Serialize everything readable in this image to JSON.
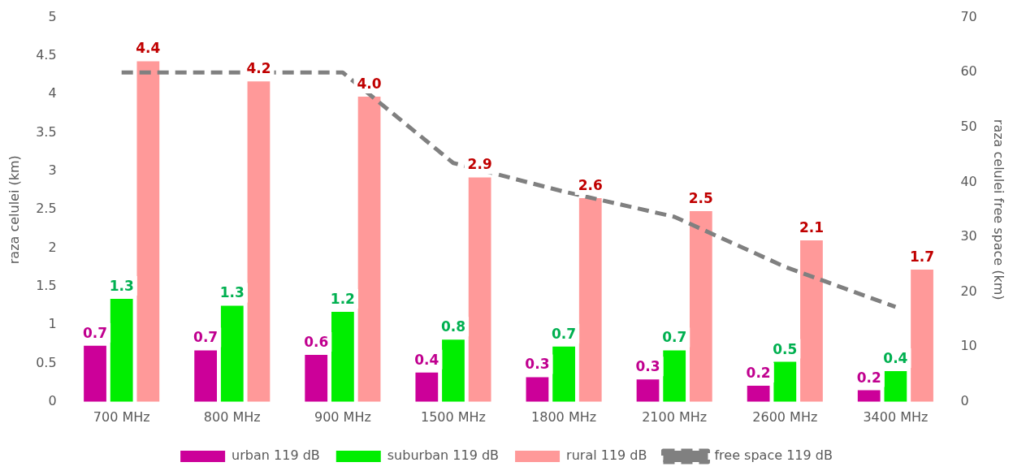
{
  "chart_data": {
    "type": "bar",
    "ylabel": "raza celulei (km)",
    "y2label": "raza celulei free space (km)",
    "categories": [
      "700 MHz",
      "800 MHz",
      "900 MHz",
      "1500 MHz",
      "1800 MHz",
      "2100 MHz",
      "2600 MHz",
      "3400 MHz"
    ],
    "series": [
      {
        "name": "urban 119 dB",
        "color": "#cc0099",
        "values": [
          0.73,
          0.67,
          0.61,
          0.38,
          0.32,
          0.29,
          0.21,
          0.15
        ],
        "value_labels": [
          "0.7",
          "0.7",
          "0.6",
          "0.4",
          "0.3",
          "0.3",
          "0.2",
          "0.2"
        ]
      },
      {
        "name": "suburban 119 dB",
        "color": "#00ee00",
        "values": [
          1.34,
          1.25,
          1.17,
          0.81,
          0.72,
          0.67,
          0.52,
          0.4
        ],
        "value_labels": [
          "1.3",
          "1.3",
          "1.2",
          "0.8",
          "0.7",
          "0.7",
          "0.5",
          "0.4"
        ]
      },
      {
        "name": "rural 119 dB",
        "color": "#ff9999",
        "values": [
          4.43,
          4.17,
          3.97,
          2.92,
          2.65,
          2.48,
          2.1,
          1.72
        ],
        "value_labels": [
          "4.4",
          "4.2",
          "4.0",
          "2.9",
          "2.6",
          "2.5",
          "2.1",
          "1.7"
        ]
      },
      {
        "name": "free space 119 dB",
        "type": "line",
        "axis": "y2",
        "color": "#808080",
        "line_style": "dashed",
        "marker": "none",
        "values": [
          60,
          60,
          60,
          43.5,
          38.3,
          33.7,
          24.6,
          17.3
        ]
      }
    ],
    "ylim": [
      0,
      5
    ],
    "yticks": [
      0,
      0.5,
      1,
      1.5,
      2,
      2.5,
      3,
      3.5,
      4,
      4.5,
      5
    ],
    "y2lim": [
      0,
      70
    ],
    "y2ticks": [
      0,
      10,
      20,
      30,
      40,
      50,
      60,
      70
    ],
    "grid": false,
    "legend": "bottom"
  }
}
